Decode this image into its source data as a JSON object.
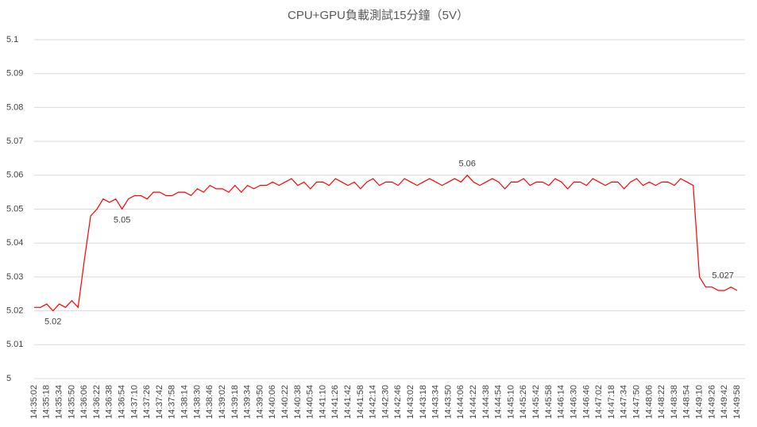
{
  "chart_data": {
    "type": "line",
    "title": "CPU+GPU負載測試15分鐘（5V）",
    "categories": [
      "14:35:02",
      null,
      "14:35:18",
      null,
      "14:35:34",
      null,
      "14:35:50",
      null,
      "14:36:06",
      null,
      "14:36:22",
      null,
      "14:36:38",
      null,
      "14:36:54",
      null,
      "14:37:10",
      null,
      "14:37:26",
      null,
      "14:37:42",
      null,
      "14:37:58",
      null,
      "14:38:14",
      null,
      "14:38:30",
      null,
      "14:38:46",
      null,
      "14:39:02",
      null,
      "14:39:18",
      null,
      "14:39:34",
      null,
      "14:39:50",
      null,
      "14:40:06",
      null,
      "14:40:22",
      null,
      "14:40:38",
      null,
      "14:40:54",
      null,
      "14:41:10",
      null,
      "14:41:26",
      null,
      "14:41:42",
      null,
      "14:41:58",
      null,
      "14:42:14",
      null,
      "14:42:30",
      null,
      "14:42:46",
      null,
      "14:43:02",
      null,
      "14:43:18",
      null,
      "14:43:34",
      null,
      "14:43:50",
      null,
      "14:44:06",
      null,
      "14:44:22",
      null,
      "14:44:38",
      null,
      "14:44:54",
      null,
      "14:45:10",
      null,
      "14:45:26",
      null,
      "14:45:42",
      null,
      "14:45:58",
      null,
      "14:46:14",
      null,
      "14:46:30",
      null,
      "14:46:46",
      null,
      "14:47:02",
      null,
      "14:47:18",
      null,
      "14:47:34",
      null,
      "14:47:50",
      null,
      "14:48:06",
      null,
      "14:48:22",
      null,
      "14:48:38",
      null,
      "14:48:54",
      null,
      "14:49:10",
      null,
      "14:49:26",
      null,
      "14:49:42",
      null,
      "14:49:58"
    ],
    "values": [
      5.021,
      5.021,
      5.022,
      5.02,
      5.022,
      5.021,
      5.023,
      5.021,
      5.035,
      5.048,
      5.05,
      5.053,
      5.052,
      5.053,
      5.05,
      5.053,
      5.054,
      5.054,
      5.053,
      5.055,
      5.055,
      5.054,
      5.054,
      5.055,
      5.055,
      5.054,
      5.056,
      5.055,
      5.057,
      5.056,
      5.056,
      5.055,
      5.057,
      5.055,
      5.057,
      5.056,
      5.057,
      5.057,
      5.058,
      5.057,
      5.058,
      5.059,
      5.057,
      5.058,
      5.056,
      5.058,
      5.058,
      5.057,
      5.059,
      5.058,
      5.057,
      5.058,
      5.056,
      5.058,
      5.059,
      5.057,
      5.058,
      5.058,
      5.057,
      5.059,
      5.058,
      5.057,
      5.058,
      5.059,
      5.058,
      5.057,
      5.058,
      5.059,
      5.058,
      5.06,
      5.058,
      5.057,
      5.058,
      5.059,
      5.058,
      5.056,
      5.058,
      5.058,
      5.059,
      5.057,
      5.058,
      5.058,
      5.057,
      5.059,
      5.058,
      5.056,
      5.058,
      5.058,
      5.057,
      5.059,
      5.058,
      5.057,
      5.058,
      5.058,
      5.056,
      5.058,
      5.059,
      5.057,
      5.058,
      5.057,
      5.058,
      5.058,
      5.057,
      5.059,
      5.058,
      5.057,
      5.03,
      5.027,
      5.027,
      5.026,
      5.026,
      5.027,
      5.026
    ],
    "value_labels": [
      null,
      null,
      null,
      "5.02",
      null,
      null,
      null,
      null,
      null,
      null,
      null,
      null,
      null,
      null,
      "5.05",
      null,
      null,
      null,
      null,
      null,
      null,
      null,
      null,
      null,
      null,
      null,
      null,
      null,
      null,
      null,
      null,
      null,
      null,
      null,
      null,
      null,
      null,
      null,
      null,
      null,
      null,
      null,
      null,
      null,
      null,
      null,
      null,
      null,
      null,
      null,
      null,
      null,
      null,
      null,
      null,
      null,
      null,
      null,
      null,
      null,
      null,
      null,
      null,
      null,
      null,
      null,
      null,
      null,
      null,
      "5.06",
      null,
      null,
      null,
      null,
      null,
      null,
      null,
      null,
      null,
      null,
      null,
      null,
      null,
      null,
      null,
      null,
      null,
      null,
      null,
      null,
      null,
      null,
      null,
      null,
      null,
      null,
      null,
      null,
      null,
      null,
      null,
      null,
      null,
      null,
      null,
      null,
      null,
      null,
      null,
      null,
      null,
      "5.027",
      null
    ],
    "color": "#ff0000",
    "ylim": [
      5,
      5.1
    ],
    "yticks": [
      5,
      5.01,
      5.02,
      5.03,
      5.04,
      5.05,
      5.06,
      5.07,
      5.08,
      5.09,
      5.1
    ],
    "grid": true
  }
}
